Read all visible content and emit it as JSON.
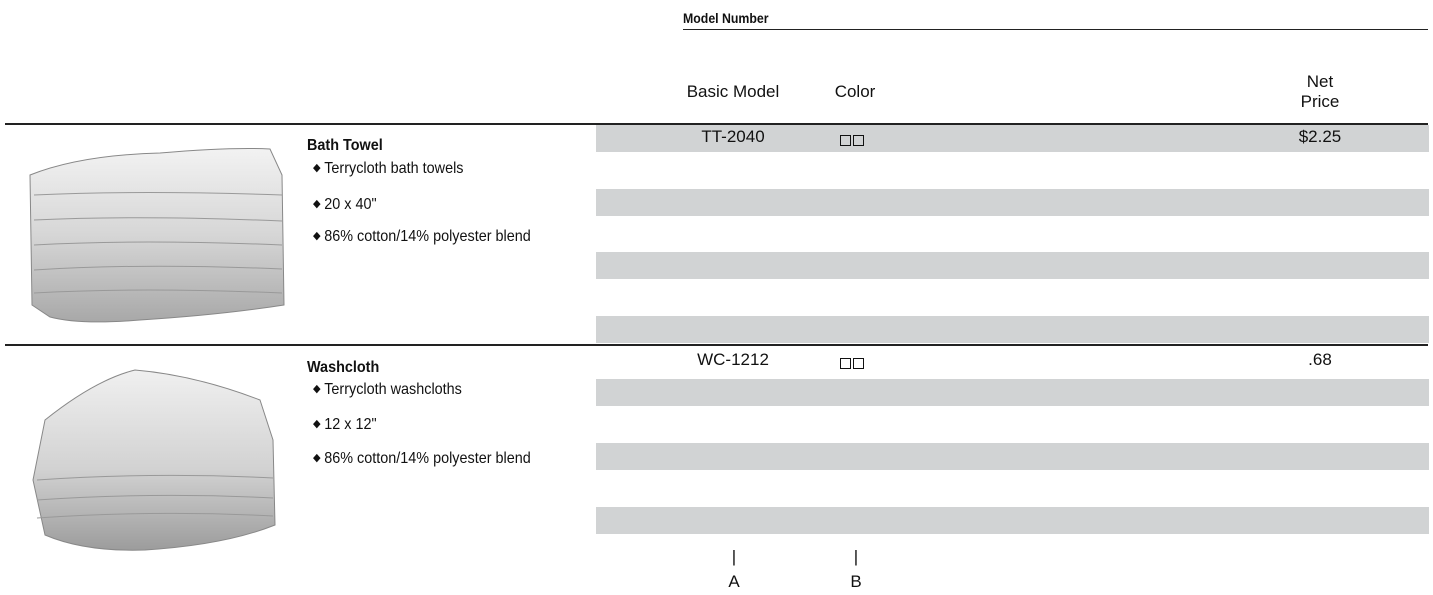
{
  "header": {
    "model_number": "Model Number",
    "basic_model": "Basic Model",
    "color": "Color",
    "net_price_line1": "Net",
    "net_price_line2": "Price"
  },
  "products": [
    {
      "name": "Bath Towel",
      "features": [
        "Terrycloth bath towels",
        "20 x 40\"",
        "86% cotton/14% polyester blend"
      ],
      "model": "TT-2040",
      "price": "$2.25",
      "image": "folded-bath-towels-stack"
    },
    {
      "name": "Washcloth",
      "features": [
        "Terrycloth washcloths",
        "12 x 12\"",
        "86% cotton/14% polyester blend"
      ],
      "model": "WC-1212",
      "price": ".68",
      "image": "folded-washcloths-stack"
    }
  ],
  "markers": {
    "a": "A",
    "b": "B",
    "tick": "|"
  },
  "colors": {
    "stripe": "#d1d3d4",
    "rule": "#222222"
  }
}
